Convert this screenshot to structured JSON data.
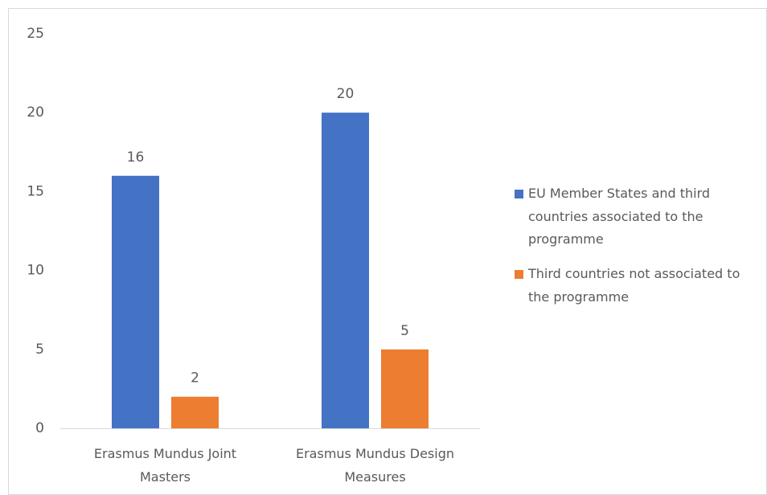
{
  "chart_data": {
    "type": "bar",
    "categories": [
      "Erasmus Mundus Joint Masters",
      "Erasmus Mundus Design Measures"
    ],
    "series": [
      {
        "name": "EU Member States and third countries associated to the programme",
        "color": "#4472c4",
        "values": [
          16,
          20
        ]
      },
      {
        "name": "Third countries not associated to the programme",
        "color": "#ed7d31",
        "values": [
          2,
          5
        ]
      }
    ],
    "ylim": [
      0,
      25
    ],
    "yticks": [
      0,
      5,
      10,
      15,
      20,
      25
    ],
    "grid": false,
    "data_labels": true,
    "legend": "right"
  }
}
